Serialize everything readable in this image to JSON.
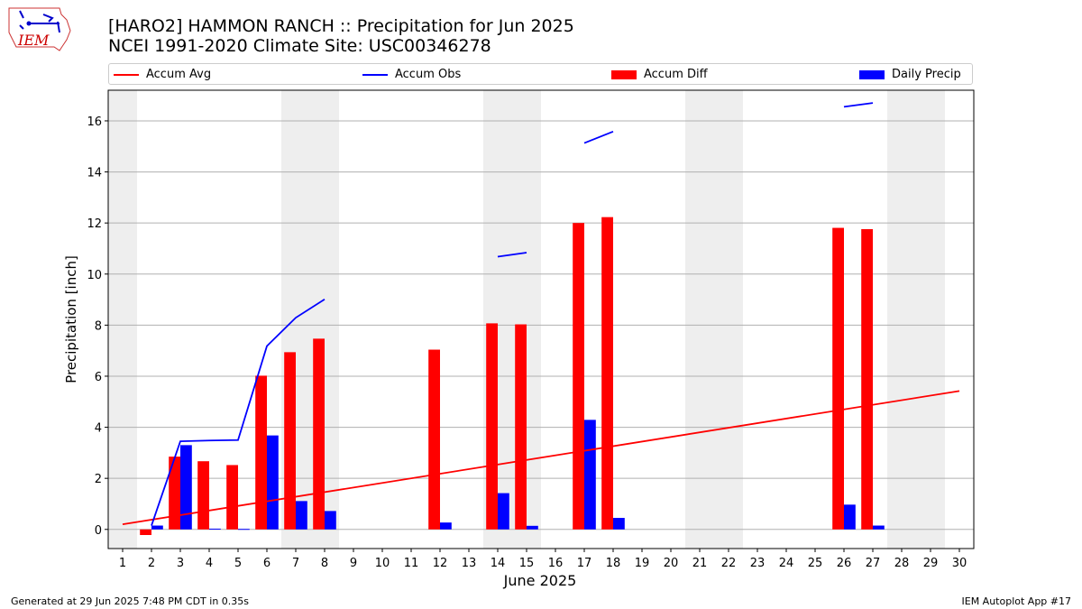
{
  "header": {
    "title_line1": "[HARO2] HAMMON RANCH :: Precipitation for Jun 2025",
    "title_line2": "NCEI 1991-2020 Climate Site: USC00346278",
    "logo_text": "IEM"
  },
  "footer": {
    "left": "Generated at 29 Jun 2025 7:48 PM CDT in 0.35s",
    "right": "IEM Autoplot App #17"
  },
  "colors": {
    "accum_avg": "#ff0000",
    "accum_obs": "#0000ff",
    "accum_diff": "#ff0000",
    "daily_precip": "#0000ff",
    "weekend_shade": "#eeeeee",
    "grid": "#b0b0b0"
  },
  "legend": [
    {
      "label": "Accum Avg",
      "kind": "line",
      "color": "#ff0000"
    },
    {
      "label": "Accum Obs",
      "kind": "line",
      "color": "#0000ff"
    },
    {
      "label": "Accum Diff",
      "kind": "bar",
      "color": "#ff0000"
    },
    {
      "label": "Daily Precip",
      "kind": "bar",
      "color": "#0000ff"
    }
  ],
  "chart_data": {
    "type": "bar",
    "xlabel": "June 2025",
    "ylabel": "Precipitation [inch]",
    "xlim": [
      0.5,
      30.5
    ],
    "ylim": [
      -0.75,
      17.2
    ],
    "yticks": [
      0,
      2,
      4,
      6,
      8,
      10,
      12,
      14,
      16
    ],
    "xticks": [
      1,
      2,
      3,
      4,
      5,
      6,
      7,
      8,
      9,
      10,
      11,
      12,
      13,
      14,
      15,
      16,
      17,
      18,
      19,
      20,
      21,
      22,
      23,
      24,
      25,
      26,
      27,
      28,
      29,
      30
    ],
    "grid": "y",
    "legend_position": "top",
    "weekend_bands": [
      [
        0.5,
        1.5
      ],
      [
        6.5,
        8.5
      ],
      [
        13.5,
        15.5
      ],
      [
        20.5,
        22.5
      ],
      [
        27.5,
        29.5
      ]
    ],
    "accum_avg": {
      "x": [
        1,
        30
      ],
      "y": [
        0.2,
        5.42
      ]
    },
    "accum_obs_segments": [
      {
        "x": [
          2,
          3,
          4,
          5,
          6,
          7,
          8
        ],
        "y": [
          0.15,
          3.45,
          3.48,
          3.5,
          7.18,
          8.29,
          9.01
        ]
      },
      {
        "x": [
          14,
          15
        ],
        "y": [
          10.68,
          10.84
        ]
      },
      {
        "x": [
          17,
          18
        ],
        "y": [
          15.13,
          15.58
        ]
      },
      {
        "x": [
          26,
          27
        ],
        "y": [
          16.55,
          16.7
        ]
      }
    ],
    "accum_diff": {
      "x": [
        2,
        3,
        4,
        5,
        6,
        7,
        8,
        12,
        14,
        15,
        17,
        18,
        26,
        27
      ],
      "values": [
        -0.22,
        2.85,
        2.67,
        2.52,
        6.02,
        6.94,
        7.47,
        7.04,
        8.07,
        8.03,
        12.0,
        12.23,
        11.81,
        11.76
      ]
    },
    "daily_precip": {
      "x": [
        2,
        3,
        4,
        5,
        6,
        7,
        8,
        12,
        14,
        15,
        17,
        18,
        26,
        27
      ],
      "values": [
        0.15,
        3.3,
        0.03,
        0.02,
        3.68,
        1.11,
        0.72,
        0.27,
        1.42,
        0.14,
        4.29,
        0.45,
        0.97,
        0.15
      ]
    }
  }
}
